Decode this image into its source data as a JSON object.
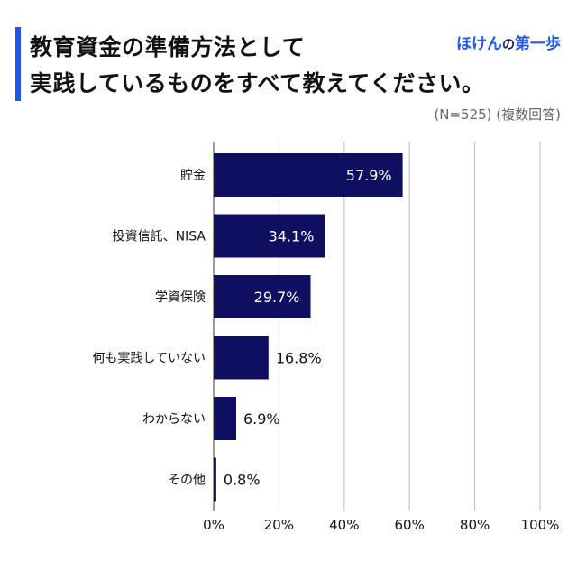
{
  "header": {
    "title_line1": "教育資金の準備方法として",
    "title_line2": "実践しているものをすべて教えてください。",
    "brand_part1": "ほけん",
    "brand_part2": "の",
    "brand_part3": "第一歩",
    "note": "(N=525) (複数回答)"
  },
  "colors": {
    "accent": "#2256e8",
    "bar": "#0f0f5f",
    "brand_blue": "#2256e8",
    "brand_dark": "#1a1a5a"
  },
  "chart_data": {
    "type": "bar",
    "orientation": "horizontal",
    "categories": [
      "貯金",
      "投資信託、NISA",
      "学資保険",
      "何も実践していない",
      "わからない",
      "その他"
    ],
    "values": [
      57.9,
      34.1,
      29.7,
      16.8,
      6.9,
      0.8
    ],
    "data_labels": [
      "57.9%",
      "34.1%",
      "29.7%",
      "16.8%",
      "6.9%",
      "0.8%"
    ],
    "xlim": [
      0,
      100
    ],
    "xticks": [
      0,
      20,
      40,
      60,
      80,
      100
    ],
    "xtick_labels": [
      "0%",
      "20%",
      "40%",
      "60%",
      "80%",
      "100%"
    ],
    "grid": true,
    "title": "",
    "xlabel": "",
    "ylabel": ""
  }
}
